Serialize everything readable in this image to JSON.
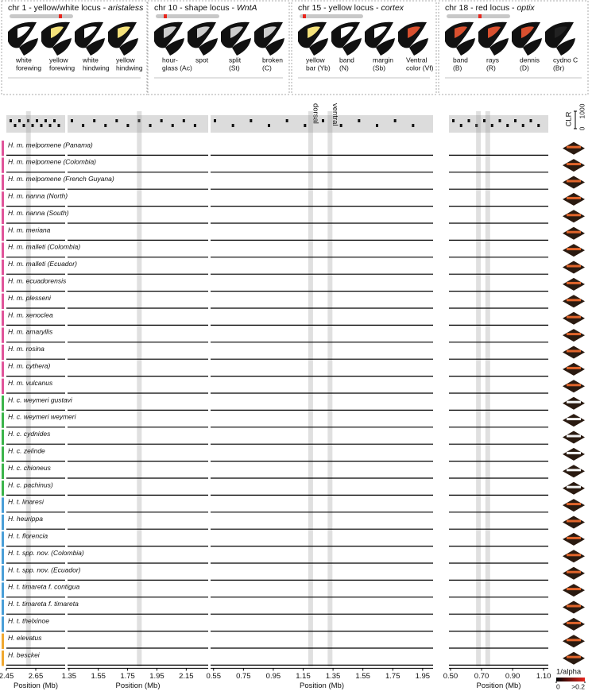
{
  "header": [
    {
      "title": "chr 1 - yellow/white locus - ",
      "gene": "aristaless",
      "colors": [
        "#ffffff",
        "#f5e27a",
        "#ffffff",
        "#f5e27a"
      ],
      "labels": [
        [
          "white",
          "forewing"
        ],
        [
          "yellow",
          "forewing"
        ],
        [
          "white",
          "hindwing"
        ],
        [
          "yellow",
          "hindwing"
        ]
      ]
    },
    {
      "title": "chr 10 - shape locus - ",
      "gene": "WntA",
      "colors": [
        "#cccccc",
        "#cccccc",
        "#cccccc",
        "#cccccc"
      ],
      "labels": [
        [
          "hour-",
          "glass (Ac)"
        ],
        [
          "spot"
        ],
        [
          "split",
          "(St)"
        ],
        [
          "broken",
          "(C)"
        ]
      ]
    },
    {
      "title": "chr 15 - yellow locus - ",
      "gene": "cortex",
      "colors": [
        "#f5e27a",
        "#ffffff",
        "#ffffff",
        "#d9502f"
      ],
      "labels": [
        [
          "yellow",
          "bar (Yb)"
        ],
        [
          "band",
          "(N)"
        ],
        [
          "margin",
          "(Sb)"
        ],
        [
          "Ventral",
          "color (Vf)"
        ]
      ]
    },
    {
      "title": "chr 18 - red locus - ",
      "gene": "optix",
      "colors": [
        "#d9502f",
        "#d9502f",
        "#d9502f",
        "#222222"
      ],
      "labels": [
        [
          "band",
          "(B)"
        ],
        [
          "rays",
          "(R)"
        ],
        [
          "dennis",
          "(D)"
        ],
        [
          "cydno C",
          "(Br)"
        ]
      ]
    }
  ],
  "taxa": [
    {
      "name": "H. m. melpomene (Panama)",
      "color": "#e0559a"
    },
    {
      "name": "H. m. melpomene (Colombia)",
      "color": "#e0559a"
    },
    {
      "name": "H. m. melpomene (French Guyana)",
      "color": "#e0559a"
    },
    {
      "name": "H. m. nanna (North)",
      "color": "#e0559a"
    },
    {
      "name": "H. m. nanna (South)",
      "color": "#e0559a"
    },
    {
      "name": "H. m. meriana",
      "color": "#e0559a"
    },
    {
      "name": "H. m. malleti (Colombia)",
      "color": "#e0559a"
    },
    {
      "name": "H. m. malleti (Ecuador)",
      "color": "#e0559a"
    },
    {
      "name": "H. m. ecuadorensis",
      "color": "#e0559a"
    },
    {
      "name": "H. m. plesseni",
      "color": "#e0559a"
    },
    {
      "name": "H. m. xenoclea",
      "color": "#e0559a"
    },
    {
      "name": "H. m. amaryllis",
      "color": "#e0559a"
    },
    {
      "name": "H. m. rosina",
      "color": "#e0559a"
    },
    {
      "name": "H. m. cythera)",
      "color": "#e0559a"
    },
    {
      "name": "H. m. vulcanus",
      "color": "#e0559a"
    },
    {
      "name": "H. c. weymeri gustavi",
      "color": "#3cb44b"
    },
    {
      "name": "H. c. weymeri weymeri",
      "color": "#3cb44b"
    },
    {
      "name": "H. c. cydnides",
      "color": "#3cb44b"
    },
    {
      "name": "H. c. zelinde",
      "color": "#3cb44b"
    },
    {
      "name": "H. c. chioneus",
      "color": "#3cb44b"
    },
    {
      "name": "H. c. pachinus)",
      "color": "#3cb44b"
    },
    {
      "name": "H. t. linaresi",
      "color": "#4a9fd8"
    },
    {
      "name": "H. heurippa",
      "color": "#4a9fd8"
    },
    {
      "name": "H. t. florencia",
      "color": "#4a9fd8"
    },
    {
      "name": "H. t. spp. nov. (Colombia)",
      "color": "#4a9fd8"
    },
    {
      "name": "H. t. spp. nov. (Ecuador)",
      "color": "#4a9fd8"
    },
    {
      "name": "H. t. timareta f. contigua",
      "color": "#4a9fd8"
    },
    {
      "name": "H. t. timareta f. timareta",
      "color": "#4a9fd8"
    },
    {
      "name": "H. t. thelxinoe",
      "color": "#4a9fd8"
    },
    {
      "name": "H. elevatus",
      "color": "#f0a830"
    },
    {
      "name": "H. besckei",
      "color": "#f0a830"
    }
  ],
  "panels": [
    {
      "xlim": [
        2.45,
        2.85
      ],
      "xticks": [
        2.45,
        2.65
      ],
      "xlabel": "Position (Mb)",
      "highlights": [
        2.6
      ]
    },
    {
      "xlim": [
        1.34,
        2.3
      ],
      "xticks": [
        1.35,
        1.55,
        1.75,
        1.95,
        2.15
      ],
      "xlabel": "Position (Mb)",
      "highlights": [
        1.83
      ]
    },
    {
      "xlim": [
        0.53,
        2.02
      ],
      "xticks": [
        0.55,
        0.75,
        0.95,
        1.15,
        1.35,
        1.55,
        1.75,
        1.95
      ],
      "xlabel": "Position (Mb)",
      "highlights": [
        1.2,
        1.33
      ]
    },
    {
      "xlim": [
        0.49,
        1.13
      ],
      "xticks": [
        {
          "value": 0.5,
          "label": "0.50"
        },
        {
          "value": 0.7,
          "label": "0.70"
        },
        {
          "value": 0.9,
          "label": "0.90"
        },
        {
          "value": 1.1,
          "label": "1.10"
        }
      ],
      "xlabel": "Position (Mb)",
      "highlights": [
        0.68,
        0.74
      ]
    }
  ],
  "annotations": [
    "dorsal",
    "ventral"
  ],
  "clr_scale": {
    "label": "CLR",
    "ticks": [
      0,
      1000
    ]
  },
  "colorbar": {
    "label": "1/alpha",
    "ticks": [
      0,
      {
        "value": 0.2,
        "label": ">0.2"
      }
    ]
  }
}
